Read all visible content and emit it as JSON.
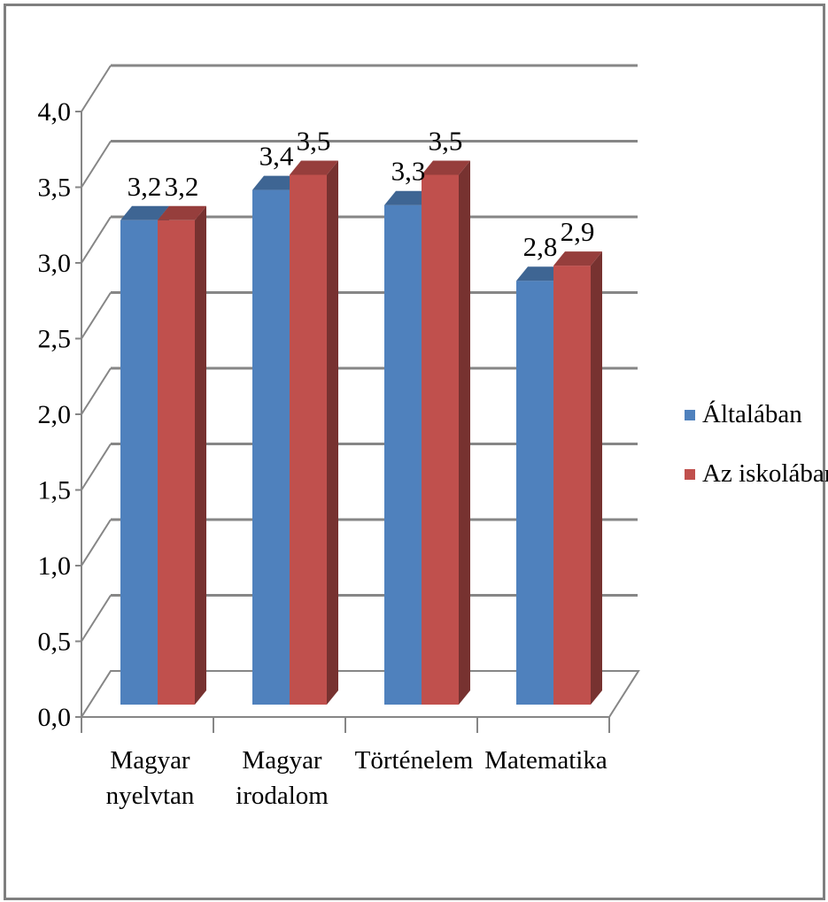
{
  "chart_data": {
    "type": "bar",
    "three_d": true,
    "categories": [
      [
        "Magyar",
        "nyelvtan"
      ],
      [
        "Magyar",
        "irodalom"
      ],
      [
        "Történelem"
      ],
      [
        "Matematika"
      ]
    ],
    "series": [
      {
        "name": "Általában",
        "color": "#4f81bd",
        "values": [
          3.2,
          3.4,
          3.3,
          2.8
        ],
        "labels": [
          "3,2",
          "3,4",
          "3,3",
          "2,8"
        ]
      },
      {
        "name": "Az iskolában",
        "color": "#c0504d",
        "values": [
          3.2,
          3.5,
          3.5,
          2.9
        ],
        "labels": [
          "3,2",
          "3,5",
          "3,5",
          "2,9"
        ]
      }
    ],
    "y_ticks": [
      "0,0",
      "0,5",
      "1,0",
      "1,5",
      "2,0",
      "2,5",
      "3,0",
      "3,5",
      "4,0"
    ],
    "ylim": [
      0,
      4
    ],
    "grid": true,
    "legend_position": "right"
  }
}
